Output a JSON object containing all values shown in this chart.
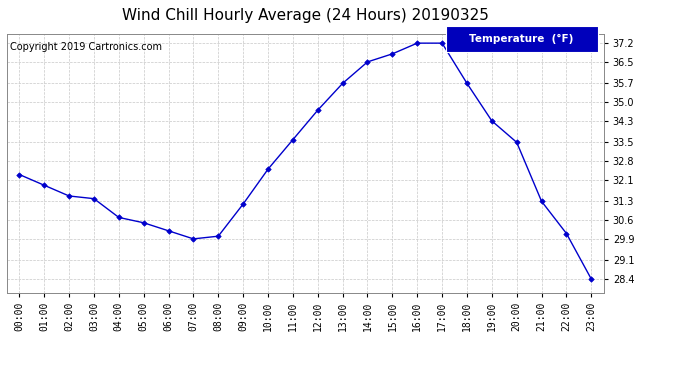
{
  "title": "Wind Chill Hourly Average (24 Hours) 20190325",
  "copyright": "Copyright 2019 Cartronics.com",
  "legend_label": "Temperature  (°F)",
  "hours": [
    "00:00",
    "01:00",
    "02:00",
    "03:00",
    "04:00",
    "05:00",
    "06:00",
    "07:00",
    "08:00",
    "09:00",
    "10:00",
    "11:00",
    "12:00",
    "13:00",
    "14:00",
    "15:00",
    "16:00",
    "17:00",
    "18:00",
    "19:00",
    "20:00",
    "21:00",
    "22:00",
    "23:00"
  ],
  "values": [
    32.3,
    31.9,
    31.5,
    31.4,
    30.7,
    30.5,
    30.2,
    29.9,
    30.0,
    31.2,
    32.5,
    33.6,
    34.7,
    35.7,
    36.5,
    36.8,
    37.2,
    37.2,
    35.7,
    34.3,
    33.5,
    31.3,
    30.1,
    28.4
  ],
  "line_color": "#0000cc",
  "marker_color": "#0000cc",
  "bg_color": "#ffffff",
  "grid_color": "#c8c8c8",
  "ylim_min": 27.9,
  "ylim_max": 37.55,
  "yticks": [
    28.4,
    29.1,
    29.9,
    30.6,
    31.3,
    32.1,
    32.8,
    33.5,
    34.3,
    35.0,
    35.7,
    36.5,
    37.2
  ],
  "title_fontsize": 11,
  "copyright_fontsize": 7,
  "tick_fontsize": 7,
  "legend_bg": "#0000bb",
  "legend_text_color": "#ffffff",
  "legend_fontsize": 7.5
}
